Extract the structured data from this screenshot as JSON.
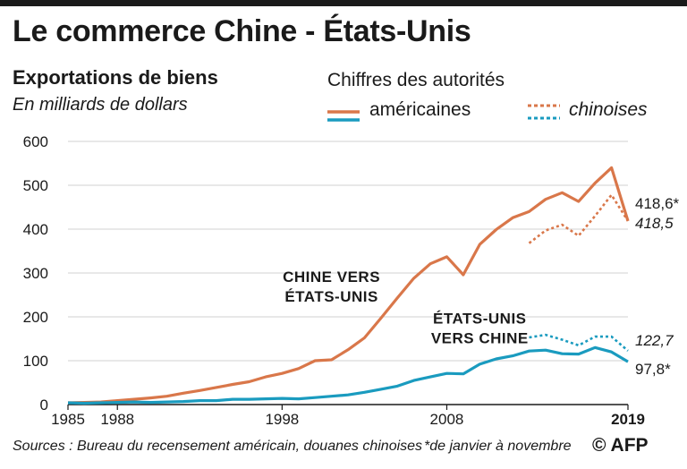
{
  "title": "Le commerce Chine - États-Unis",
  "subtitle": "Exportations de biens",
  "unit": "En milliards de dollars",
  "legend": {
    "title": "Chiffres des autorités",
    "usa_label": "américaines",
    "china_label": "chinoises"
  },
  "footer": {
    "sources": "Sources : Bureau du recensement américain, douanes chinoises",
    "footnote": "*de janvier à novembre",
    "credit": "© AFP"
  },
  "colors": {
    "orange": "#d9774a",
    "blue": "#1a9bbf",
    "grid": "#d0d0d0",
    "axis": "#1a1a1a"
  },
  "chart_data": {
    "type": "line",
    "ylim": [
      0,
      600
    ],
    "yticks": [
      0,
      100,
      200,
      300,
      400,
      500,
      600
    ],
    "xlim": [
      1985,
      2019
    ],
    "xticks": [
      {
        "value": 1985,
        "label": "1985",
        "bold": false
      },
      {
        "value": 1988,
        "label": "1988",
        "bold": false
      },
      {
        "value": 1998,
        "label": "1998",
        "bold": false
      },
      {
        "value": 2008,
        "label": "2008",
        "bold": false
      },
      {
        "value": 2019,
        "label": "2019",
        "bold": true
      }
    ],
    "grid": true,
    "series": [
      {
        "key": "china_to_us_us",
        "color": "orange",
        "dashed": false,
        "x": [
          1985,
          1986,
          1987,
          1988,
          1989,
          1990,
          1991,
          1992,
          1993,
          1994,
          1995,
          1996,
          1997,
          1998,
          1999,
          2000,
          2001,
          2002,
          2003,
          2004,
          2005,
          2006,
          2007,
          2008,
          2009,
          2010,
          2011,
          2012,
          2013,
          2014,
          2015,
          2016,
          2017,
          2018,
          2019
        ],
        "y": [
          4,
          5,
          6,
          9,
          12,
          15,
          19,
          26,
          32,
          39,
          46,
          52,
          63,
          71,
          82,
          100,
          102,
          125,
          152,
          197,
          243,
          288,
          321,
          337,
          296,
          365,
          399,
          426,
          440,
          468,
          483,
          463,
          505,
          540,
          418.6
        ]
      },
      {
        "key": "china_to_us_cn",
        "color": "orange",
        "dashed": true,
        "x": [
          2013,
          2014,
          2015,
          2016,
          2017,
          2018,
          2019
        ],
        "y": [
          368,
          397,
          410,
          385,
          430,
          478,
          418.5
        ]
      },
      {
        "key": "us_to_china_us",
        "color": "blue",
        "dashed": false,
        "x": [
          1985,
          1986,
          1987,
          1988,
          1989,
          1990,
          1991,
          1992,
          1993,
          1994,
          1995,
          1996,
          1997,
          1998,
          1999,
          2000,
          2001,
          2002,
          2003,
          2004,
          2005,
          2006,
          2007,
          2008,
          2009,
          2010,
          2011,
          2012,
          2013,
          2014,
          2015,
          2016,
          2017,
          2018,
          2019
        ],
        "y": [
          4,
          3,
          4,
          5,
          6,
          5,
          6,
          7,
          9,
          9,
          12,
          12,
          13,
          14,
          13,
          16,
          19,
          22,
          28,
          35,
          42,
          55,
          63,
          71,
          70,
          92,
          104,
          111,
          122,
          124,
          116,
          115,
          130,
          120,
          97.8
        ]
      },
      {
        "key": "us_to_china_cn",
        "color": "blue",
        "dashed": true,
        "x": [
          2013,
          2014,
          2015,
          2016,
          2017,
          2018,
          2019
        ],
        "y": [
          153,
          159,
          148,
          135,
          155,
          155,
          122.7
        ]
      }
    ],
    "annotations": [
      {
        "lines": [
          "CHINE VERS",
          "ÉTATS-UNIS"
        ],
        "x": 2001,
        "y": 280
      },
      {
        "lines": [
          "ÉTATS-UNIS",
          "VERS CHINE"
        ],
        "x": 2010,
        "y": 185
      }
    ],
    "end_labels": [
      {
        "text": "418,6*",
        "y": 418.6,
        "italic": false
      },
      {
        "text": "418,5",
        "y": 418.5,
        "italic": true
      },
      {
        "text": "122,7",
        "y": 122.7,
        "italic": true
      },
      {
        "text": "97,8*",
        "y": 97.8,
        "italic": false
      }
    ]
  }
}
